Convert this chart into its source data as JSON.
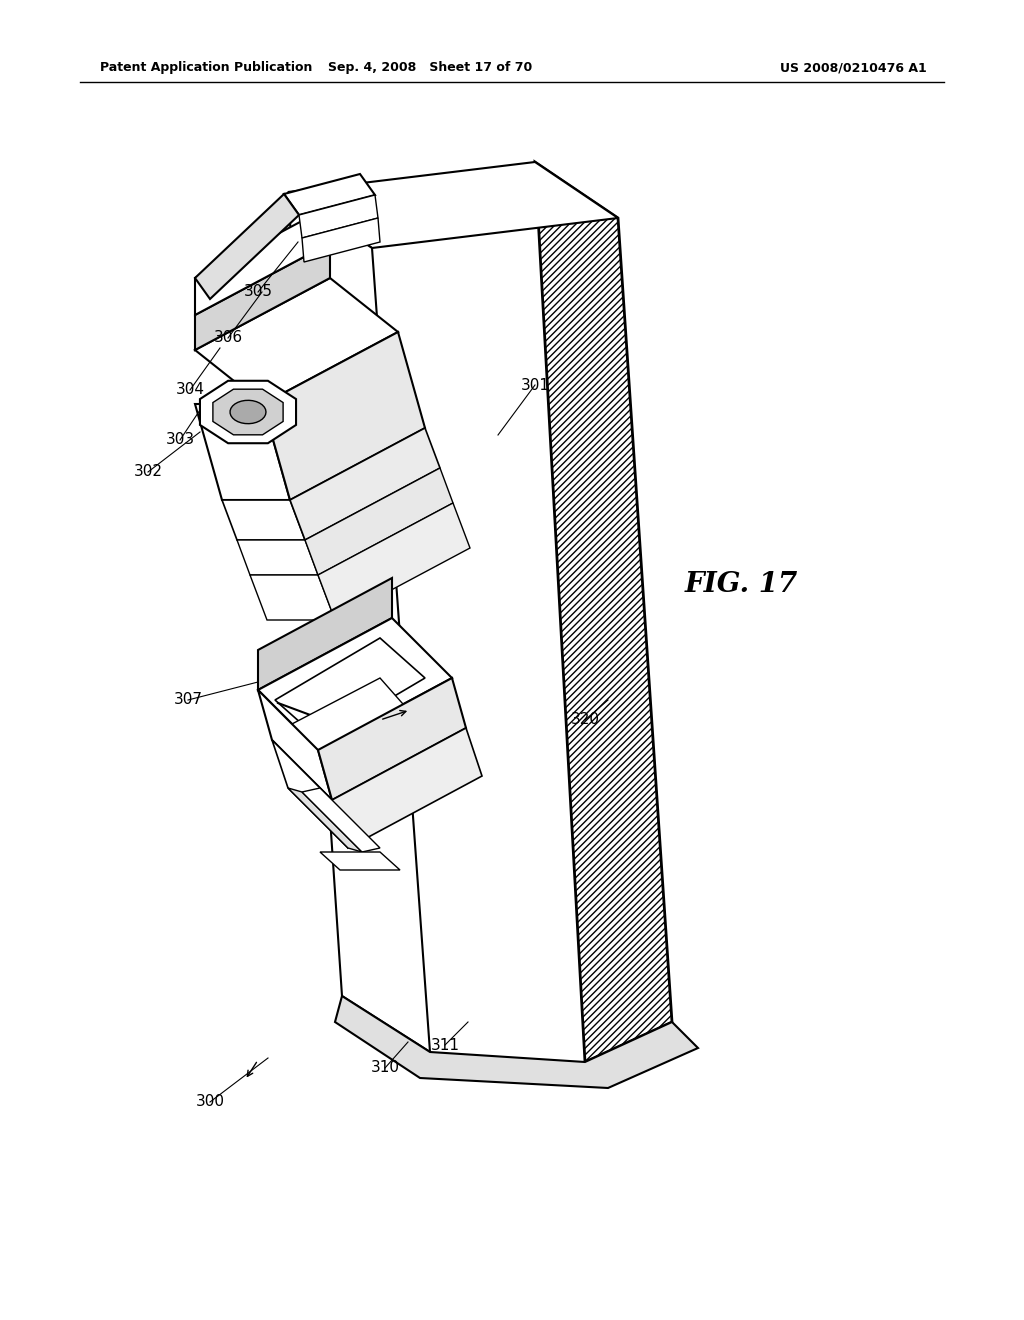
{
  "header_left": "Patent Application Publication",
  "header_center": "Sep. 4, 2008   Sheet 17 of 70",
  "header_right": "US 2008/0210476 A1",
  "fig_label": "FIG. 17",
  "bg_color": "#ffffff",
  "line_color": "#000000",
  "labels_data": [
    [
      "300",
      268,
      1058,
      210,
      1102
    ],
    [
      "301",
      498,
      435,
      535,
      385
    ],
    [
      "302",
      200,
      432,
      148,
      472
    ],
    [
      "303",
      210,
      395,
      180,
      440
    ],
    [
      "304",
      220,
      348,
      190,
      390
    ],
    [
      "305",
      298,
      242,
      258,
      292
    ],
    [
      "306",
      262,
      292,
      228,
      338
    ],
    [
      "307",
      258,
      682,
      188,
      700
    ],
    [
      "310",
      408,
      1042,
      385,
      1068
    ],
    [
      "311",
      468,
      1022,
      445,
      1045
    ],
    [
      "320",
      608,
      700,
      585,
      720
    ]
  ]
}
